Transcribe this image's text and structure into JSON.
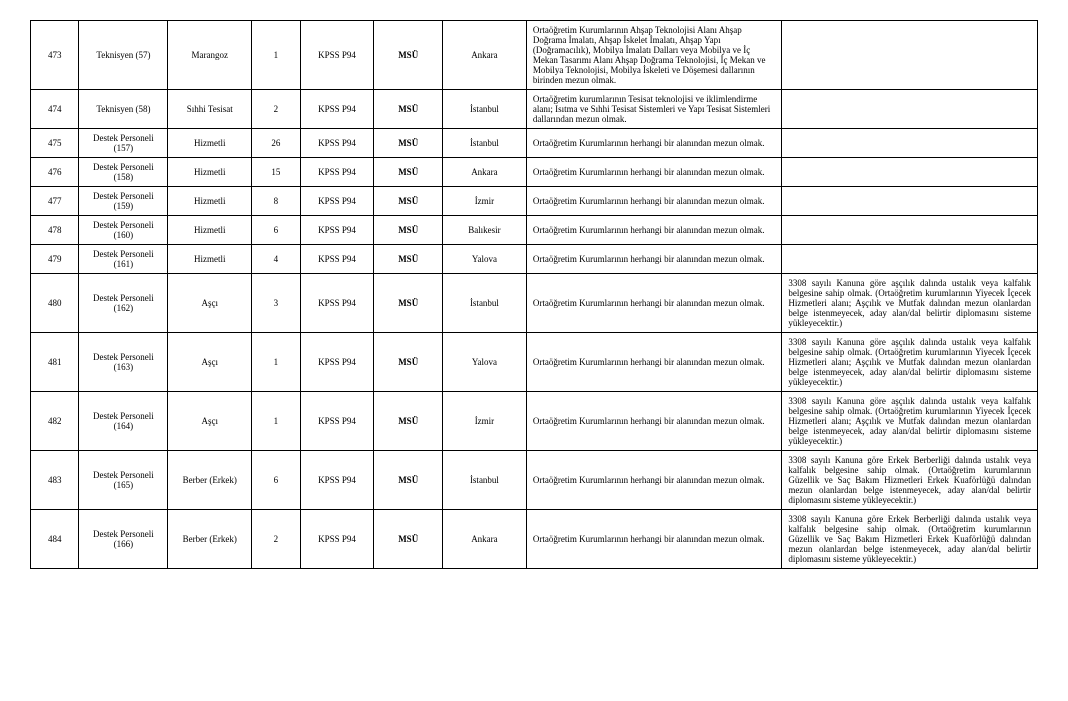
{
  "table": {
    "rows": [
      {
        "no": "473",
        "position": "Teknisyen (57)",
        "branch": "Marangoz",
        "count": "1",
        "exam": "KPSS P94",
        "institution": "MSÜ",
        "city": "Ankara",
        "requirement": "Ortaöğretim Kurumlarının Ahşap Teknolojisi Alanı Ahşap Doğrama İmalatı, Ahşap İskelet İmalatı, Ahşap Yapı (Doğramacılık), Mobilya İmalatı Dalları veya Mobilya ve İç Mekan Tasarımı Alanı Ahşap Doğrama Teknolojisi, İç Mekan ve Mobilya Teknolojisi, Mobilya İskeleti ve Döşemesi dallarının birinden mezun olmak.",
        "note": ""
      },
      {
        "no": "474",
        "position": "Teknisyen (58)",
        "branch": "Sıhhi Tesisat",
        "count": "2",
        "exam": "KPSS P94",
        "institution": "MSÜ",
        "city": "İstanbul",
        "requirement": "Ortaöğretim kurumlarının Tesisat teknolojisi ve iklimlendirme alanı; Isıtma ve Sıhhi Tesisat Sistemleri ve Yapı Tesisat Sistemleri dallarından mezun olmak.",
        "note": ""
      },
      {
        "no": "475",
        "position": "Destek Personeli (157)",
        "branch": "Hizmetli",
        "count": "26",
        "exam": "KPSS P94",
        "institution": "MSÜ",
        "city": "İstanbul",
        "requirement": "Ortaöğretim Kurumlarının herhangi bir alanından mezun olmak.",
        "note": ""
      },
      {
        "no": "476",
        "position": "Destek Personeli (158)",
        "branch": "Hizmetli",
        "count": "15",
        "exam": "KPSS P94",
        "institution": "MSÜ",
        "city": "Ankara",
        "requirement": "Ortaöğretim Kurumlarının herhangi bir alanından mezun olmak.",
        "note": ""
      },
      {
        "no": "477",
        "position": "Destek Personeli (159)",
        "branch": "Hizmetli",
        "count": "8",
        "exam": "KPSS P94",
        "institution": "MSÜ",
        "city": "İzmir",
        "requirement": "Ortaöğretim Kurumlarının herhangi bir alanından mezun olmak.",
        "note": ""
      },
      {
        "no": "478",
        "position": "Destek Personeli (160)",
        "branch": "Hizmetli",
        "count": "6",
        "exam": "KPSS P94",
        "institution": "MSÜ",
        "city": "Balıkesir",
        "requirement": "Ortaöğretim Kurumlarının herhangi bir alanından mezun olmak.",
        "note": ""
      },
      {
        "no": "479",
        "position": "Destek Personeli (161)",
        "branch": "Hizmetli",
        "count": "4",
        "exam": "KPSS P94",
        "institution": "MSÜ",
        "city": "Yalova",
        "requirement": "Ortaöğretim Kurumlarının herhangi bir alanından mezun olmak.",
        "note": ""
      },
      {
        "no": "480",
        "position": "Destek Personeli (162)",
        "branch": "Aşçı",
        "count": "3",
        "exam": "KPSS P94",
        "institution": "MSÜ",
        "city": "İstanbul",
        "requirement": "Ortaöğretim Kurumlarının herhangi bir alanından mezun olmak.",
        "note": "3308 sayılı Kanuna göre aşçılık dalında ustalık veya kalfalık belgesine sahip olmak. (Ortaöğretim kurumlarının Yiyecek İçecek Hizmetleri alanı; Aşçılık ve Mutfak dalından mezun olanlardan belge istenmeyecek, aday alan/dal belirtir diplomasını sisteme yükleyecektir.)"
      },
      {
        "no": "481",
        "position": "Destek Personeli (163)",
        "branch": "Aşçı",
        "count": "1",
        "exam": "KPSS P94",
        "institution": "MSÜ",
        "city": "Yalova",
        "requirement": "Ortaöğretim Kurumlarının herhangi bir alanından mezun olmak.",
        "note": "3308 sayılı Kanuna göre aşçılık dalında ustalık veya kalfalık belgesine sahip olmak. (Ortaöğretim kurumlarının Yiyecek İçecek Hizmetleri alanı; Aşçılık ve Mutfak dalından mezun olanlardan belge istenmeyecek, aday alan/dal belirtir diplomasını sisteme yükleyecektir.)"
      },
      {
        "no": "482",
        "position": "Destek Personeli (164)",
        "branch": "Aşçı",
        "count": "1",
        "exam": "KPSS P94",
        "institution": "MSÜ",
        "city": "İzmir",
        "requirement": "Ortaöğretim Kurumlarının herhangi bir alanından mezun olmak.",
        "note": "3308 sayılı Kanuna göre aşçılık dalında ustalık veya kalfalık belgesine sahip olmak. (Ortaöğretim kurumlarının Yiyecek İçecek Hizmetleri alanı; Aşçılık ve Mutfak dalından mezun olanlardan belge istenmeyecek, aday alan/dal belirtir diplomasını sisteme yükleyecektir.)"
      },
      {
        "no": "483",
        "position": "Destek Personeli (165)",
        "branch": "Berber (Erkek)",
        "count": "6",
        "exam": "KPSS P94",
        "institution": "MSÜ",
        "city": "İstanbul",
        "requirement": "Ortaöğretim Kurumlarının herhangi bir alanından mezun olmak.",
        "note": "3308 sayılı Kanuna göre Erkek Berberliği dalında ustalık veya kalfalık belgesine sahip olmak. (Ortaöğretim kurumlarının Güzellik ve Saç Bakım Hizmetleri Erkek Kuaförlüğü dalından mezun olanlardan belge istenmeyecek, aday alan/dal belirtir diplomasını sisteme yükleyecektir.)"
      },
      {
        "no": "484",
        "position": "Destek Personeli (166)",
        "branch": "Berber (Erkek)",
        "count": "2",
        "exam": "KPSS P94",
        "institution": "MSÜ",
        "city": "Ankara",
        "requirement": "Ortaöğretim Kurumlarının herhangi bir alanından mezun olmak.",
        "note": "3308 sayılı Kanuna göre Erkek Berberliği dalında ustalık veya kalfalık belgesine sahip olmak. (Ortaöğretim kurumlarının Güzellik ve Saç Bakım Hizmetleri Erkek Kuaförlüğü dalından mezun olanlardan belge istenmeyecek, aday alan/dal belirtir diplomasını sisteme yükleyecektir.)"
      }
    ]
  }
}
